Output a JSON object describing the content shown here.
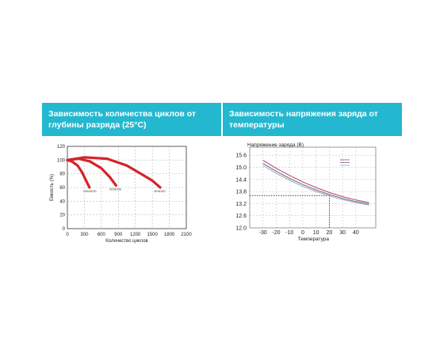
{
  "colors": {
    "banner": "#23b8cf",
    "banner_text": "#ffffff",
    "curve": "#d4232a"
  },
  "chart_data": [
    {
      "type": "line",
      "title": "Зависимость количества циклов от глубины разряда (25°C)",
      "xlabel": "Количество циклов",
      "ylabel": "Емкость (%)",
      "xlim": [
        0,
        2100
      ],
      "ylim": [
        0,
        120
      ],
      "x_ticks": [
        "0",
        "300",
        "600",
        "900",
        "1200",
        "1500",
        "1800",
        "2100"
      ],
      "y_ticks": [
        "0",
        "20",
        "40",
        "60",
        "80",
        "100",
        "120"
      ],
      "grid": true,
      "series": [
        {
          "name": "100%DOD",
          "points": [
            [
              0,
              100
            ],
            [
              80,
              98
            ],
            [
              180,
              92
            ],
            [
              260,
              82
            ],
            [
              330,
              70
            ],
            [
              390,
              60
            ]
          ]
        },
        {
          "name": "50%DOD",
          "points": [
            [
              0,
              100
            ],
            [
              200,
              102
            ],
            [
              400,
              98
            ],
            [
              600,
              88
            ],
            [
              750,
              75
            ],
            [
              860,
              63
            ]
          ]
        },
        {
          "name": "30%DOD",
          "points": [
            [
              0,
              100
            ],
            [
              300,
              104
            ],
            [
              700,
              102
            ],
            [
              1050,
              92
            ],
            [
              1300,
              80
            ],
            [
              1500,
              70
            ],
            [
              1640,
              60
            ]
          ]
        }
      ],
      "series_labels": [
        "100%DOD",
        "50%DOD",
        "30%DOD"
      ]
    },
    {
      "type": "line",
      "title": "Зависимость напряжения заряда от температуры",
      "xlabel": "Температура",
      "ylabel": "Напряжение заряда (В)",
      "xlim": [
        -40,
        55
      ],
      "ylim": [
        12.0,
        16.0
      ],
      "x_ticks": [
        "-30",
        "-20",
        "-10",
        "0",
        "10",
        "20",
        "30",
        "40"
      ],
      "y_ticks": [
        "12.0",
        "12.6",
        "13.2",
        "13.8",
        "14.4",
        "15.0",
        "15.6"
      ],
      "grid": true,
      "reference_lines": {
        "x": 20,
        "y": 13.6
      },
      "series": [
        {
          "name": "",
          "points": [
            [
              -30,
              15.35
            ],
            [
              -20,
              14.95
            ],
            [
              -10,
              14.6
            ],
            [
              0,
              14.28
            ],
            [
              10,
              14.0
            ],
            [
              20,
              13.75
            ],
            [
              30,
              13.55
            ],
            [
              40,
              13.38
            ],
            [
              50,
              13.25
            ]
          ]
        },
        {
          "name": "",
          "points": [
            [
              -30,
              15.2
            ],
            [
              -20,
              14.8
            ],
            [
              -10,
              14.45
            ],
            [
              0,
              14.15
            ],
            [
              10,
              13.88
            ],
            [
              20,
              13.65
            ],
            [
              30,
              13.46
            ],
            [
              40,
              13.3
            ],
            [
              50,
              13.18
            ]
          ]
        },
        {
          "name": "",
          "points": [
            [
              -30,
              15.1
            ],
            [
              -20,
              14.7
            ],
            [
              -10,
              14.36
            ],
            [
              0,
              14.06
            ],
            [
              10,
              13.8
            ],
            [
              20,
              13.58
            ],
            [
              30,
              13.4
            ],
            [
              40,
              13.25
            ],
            [
              50,
              13.13
            ]
          ]
        }
      ],
      "series_colors": [
        "#c03a6a",
        "#5a6c8a",
        "#9aa6b8"
      ]
    }
  ]
}
